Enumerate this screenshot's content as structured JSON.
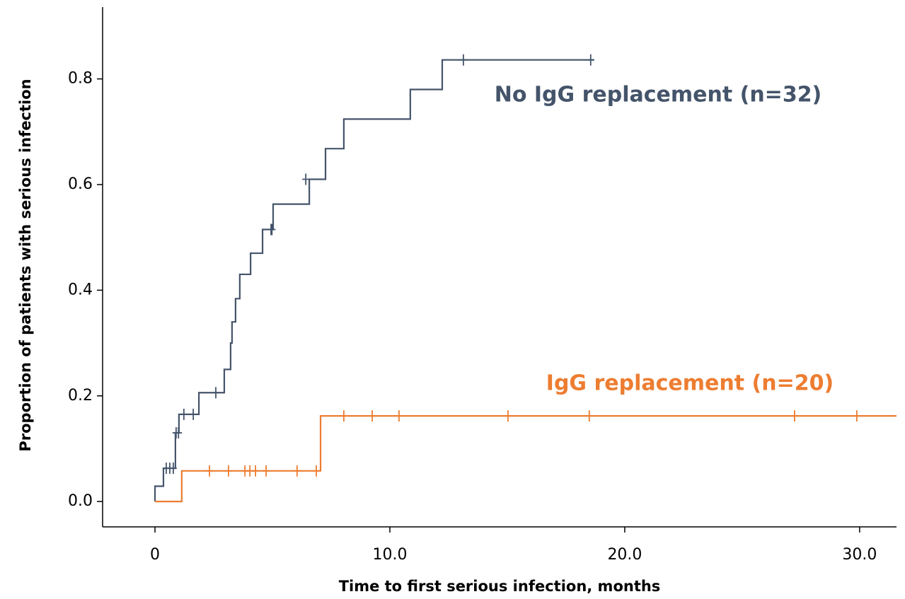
{
  "chart_data": {
    "type": "step",
    "x_label": "Time to first serious infection, months",
    "y_label": "Proportion of patients with serious infection",
    "xlim": [
      -2.23,
      31.57
    ],
    "ylim": [
      -0.048,
      0.936
    ],
    "xticks": [
      0,
      {
        "value": 10,
        "label": "10.0"
      },
      {
        "value": 20,
        "label": "20.0"
      },
      {
        "value": 30,
        "label": "30.0"
      }
    ],
    "yticks": [
      {
        "value": 0,
        "label": "0.0"
      },
      0.2,
      0.4,
      0.6,
      0.8
    ],
    "series": [
      {
        "name": "No IgG replacement (n=32)",
        "color": "#44546a",
        "x": [
          0,
          0,
          0.36,
          0.87,
          1.02,
          1.87,
          2.95,
          3.22,
          3.28,
          3.43,
          3.61,
          4.07,
          4.58,
          5.03,
          6.57,
          7.26,
          8.04,
          10.87,
          12.23,
          18.7
        ],
        "values": [
          0,
          0.029,
          0.063,
          0.13,
          0.165,
          0.206,
          0.25,
          0.3,
          0.34,
          0.384,
          0.43,
          0.47,
          0.515,
          0.563,
          0.61,
          0.668,
          0.724,
          0.78,
          0.836,
          0.836
        ],
        "censored": {
          "x": [
            0.48,
            0.63,
            0.78,
            0.9,
            1.0,
            1.23,
            1.63,
            2.59,
            4.94,
            4.98,
            6.42,
            13.13,
            18.55
          ],
          "values": [
            0.063,
            0.063,
            0.063,
            0.13,
            0.13,
            0.165,
            0.165,
            0.206,
            0.515,
            0.515,
            0.61,
            0.836,
            0.836
          ]
        }
      },
      {
        "name": "IgG replacement (n=20)",
        "color": "#ed7d31",
        "x": [
          0,
          1.14,
          7.05,
          31.57
        ],
        "values": [
          0,
          0.058,
          0.162,
          0.162
        ],
        "censored": {
          "x": [
            2.32,
            3.13,
            3.83,
            4.04,
            4.28,
            4.73,
            6.05,
            6.87,
            8.04,
            9.25,
            10.39,
            15.03,
            18.49,
            27.23,
            29.88
          ],
          "values": [
            0.058,
            0.058,
            0.058,
            0.058,
            0.058,
            0.058,
            0.058,
            0.058,
            0.162,
            0.162,
            0.162,
            0.162,
            0.162,
            0.162,
            0.162
          ]
        }
      }
    ]
  }
}
